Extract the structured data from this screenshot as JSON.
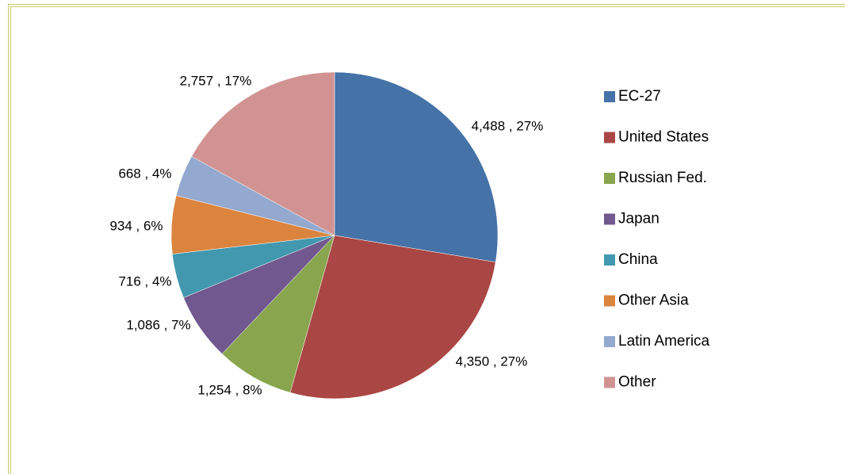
{
  "chart_data": {
    "type": "pie",
    "categories": [
      "EC-27",
      "United States",
      "Russian Fed.",
      "Japan",
      "China",
      "Other Asia",
      "Latin America",
      "Other"
    ],
    "values": [
      4488,
      4350,
      1254,
      1086,
      716,
      934,
      668,
      2757
    ],
    "value_labels": [
      "4,488 , 27%",
      "4,350 , 27%",
      "1,254 , 8%",
      "1,086 , 7%",
      "716 , 4%",
      "934 , 6%",
      "668 , 4%",
      "2,757 , 17%"
    ],
    "colors": [
      "#4572a7",
      "#aa4643",
      "#89a54e",
      "#71588f",
      "#4198af",
      "#db843d",
      "#93a9cf",
      "#d19392"
    ],
    "legend": "right"
  }
}
